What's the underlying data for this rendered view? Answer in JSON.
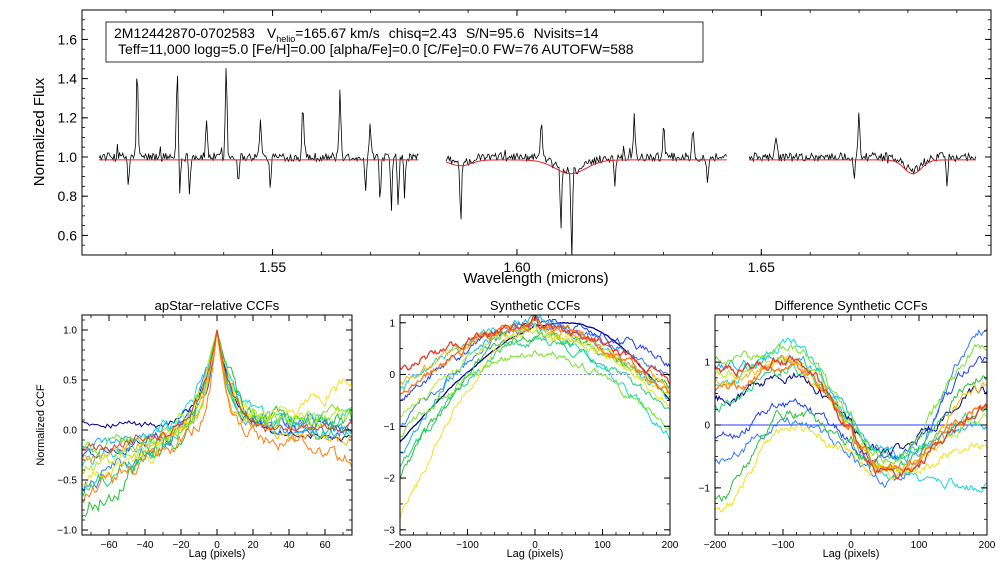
{
  "chart_data": [
    {
      "type": "line",
      "id": "spectrum",
      "header_line1": {
        "star_id": "2M12442870-0702583",
        "vhelio_label": "V",
        "vhelio_sub": "helio",
        "vhelio_value": "=165.67 km/s",
        "chisq": "chisq=2.43",
        "snr": "S/N=95.6",
        "nvisits": "Nvisits=14"
      },
      "header_line2": "Teff=11,000 logg=5.0 [Fe/H]=0.00 [alpha/Fe]=0.0 [C/Fe]=0.0 FW=76 AUTOFW=588",
      "xlabel": "Wavelength (microns)",
      "ylabel": "Normalized Flux",
      "xlim": [
        1.511,
        1.697
      ],
      "ylim": [
        0.5,
        1.75
      ],
      "xticks": [
        1.55,
        1.6,
        1.65
      ],
      "xtick_labels": [
        "1.55",
        "1.60",
        "1.65"
      ],
      "yticks": [
        0.6,
        0.8,
        1.0,
        1.2,
        1.4,
        1.6
      ],
      "ytick_labels": [
        "0.6",
        "0.8",
        "1.0",
        "1.2",
        "1.4",
        "1.6"
      ],
      "chips": [
        [
          1.5145,
          1.58
        ],
        [
          1.5855,
          1.643
        ],
        [
          1.6475,
          1.694
        ]
      ],
      "colors": {
        "observed": "#000000",
        "model": "#e8202a"
      },
      "model_dips": [
        {
          "center": 1.611,
          "depth": 0.07,
          "width": 0.0045
        },
        {
          "center": 1.5885,
          "depth": 0.03,
          "width": 0.003
        },
        {
          "center": 1.681,
          "depth": 0.07,
          "width": 0.0025
        }
      ],
      "emission_lines": [
        {
          "w": 1.5223,
          "f": 1.45
        },
        {
          "w": 1.5305,
          "f": 1.46
        },
        {
          "w": 1.5405,
          "f": 1.48
        },
        {
          "w": 1.5365,
          "f": 1.19
        },
        {
          "w": 1.5475,
          "f": 1.21
        },
        {
          "w": 1.5562,
          "f": 1.28
        },
        {
          "w": 1.5638,
          "f": 1.34
        },
        {
          "w": 1.57,
          "f": 1.16
        },
        {
          "w": 1.605,
          "f": 1.19
        },
        {
          "w": 1.624,
          "f": 1.22
        },
        {
          "w": 1.63,
          "f": 1.18
        },
        {
          "w": 1.636,
          "f": 1.16
        },
        {
          "w": 1.67,
          "f": 1.24
        },
        {
          "w": 1.653,
          "f": 1.12
        }
      ],
      "absorption_lines": [
        {
          "w": 1.5205,
          "f": 0.85
        },
        {
          "w": 1.531,
          "f": 0.8
        },
        {
          "w": 1.533,
          "f": 0.83
        },
        {
          "w": 1.543,
          "f": 0.88
        },
        {
          "w": 1.5495,
          "f": 0.82
        },
        {
          "w": 1.569,
          "f": 0.8
        },
        {
          "w": 1.572,
          "f": 0.73
        },
        {
          "w": 1.5743,
          "f": 0.7
        },
        {
          "w": 1.5757,
          "f": 0.74
        },
        {
          "w": 1.577,
          "f": 0.78
        },
        {
          "w": 1.5885,
          "f": 0.69
        },
        {
          "w": 1.609,
          "f": 0.69
        },
        {
          "w": 1.6112,
          "f": 0.55
        },
        {
          "w": 1.62,
          "f": 0.85
        },
        {
          "w": 1.639,
          "f": 0.85
        },
        {
          "w": 1.669,
          "f": 0.88
        },
        {
          "w": 1.688,
          "f": 0.86
        }
      ]
    },
    {
      "type": "line",
      "id": "apstar_ccf",
      "title": "apStar−relative CCFs",
      "xlabel": "Lag (pixels)",
      "ylabel": "Normalized CCF",
      "xlim": [
        -75,
        75
      ],
      "ylim": [
        -1.05,
        1.15
      ],
      "xticks": [
        -60,
        -40,
        -20,
        0,
        20,
        40,
        60
      ],
      "xtick_labels": [
        "−60",
        "−40",
        "−20",
        "0",
        "20",
        "40",
        "60"
      ],
      "yticks": [
        -1.0,
        -0.5,
        0.0,
        0.5,
        1.0
      ],
      "ytick_labels": [
        "−1.0",
        "−0.5",
        "0.0",
        "0.5",
        "1.0"
      ],
      "series": [
        {
          "color": "#00008b",
          "left": 0.1,
          "right": -0.1,
          "width": 9,
          "amp": 0.06
        },
        {
          "color": "#1f3fff",
          "left": -0.25,
          "right": 0.05,
          "width": 7,
          "amp": 0.1
        },
        {
          "color": "#2f7cff",
          "left": -0.55,
          "right": 0.05,
          "width": 10,
          "amp": 0.12
        },
        {
          "color": "#12b4ee",
          "left": -0.15,
          "right": -0.05,
          "width": 8,
          "amp": 0.1
        },
        {
          "color": "#16d8d8",
          "left": -0.35,
          "right": 0.1,
          "width": 12,
          "amp": 0.12
        },
        {
          "color": "#1fd47a",
          "left": -0.6,
          "right": 0.0,
          "width": 9,
          "amp": 0.14
        },
        {
          "color": "#27c13b",
          "left": -0.85,
          "right": 0.05,
          "width": 11,
          "amp": 0.16
        },
        {
          "color": "#78e22a",
          "left": -0.2,
          "right": 0.2,
          "width": 7,
          "amp": 0.1
        },
        {
          "color": "#b8ec2a",
          "left": -0.4,
          "right": 0.15,
          "width": 10,
          "amp": 0.12
        },
        {
          "color": "#f2e21c",
          "left": -0.55,
          "right": 0.45,
          "width": 8,
          "amp": 0.12
        },
        {
          "color": "#ffb300",
          "left": -0.3,
          "right": -0.1,
          "width": 6,
          "amp": 0.1
        },
        {
          "color": "#ff7b12",
          "left": -0.7,
          "right": -0.3,
          "width": 5,
          "amp": 0.12
        },
        {
          "color": "#e83a2a",
          "left": -0.2,
          "right": 0.0,
          "width": 9,
          "amp": 0.08
        }
      ]
    },
    {
      "type": "line",
      "id": "synthetic_ccf",
      "title": "Synthetic CCFs",
      "xlabel": "Lag (pixels)",
      "ylabel": "",
      "xlim": [
        -200,
        200
      ],
      "ylim": [
        -3.1,
        1.15
      ],
      "xticks": [
        -200,
        -100,
        0,
        100,
        200
      ],
      "xtick_labels": [
        "−200",
        "−100",
        "0",
        "100",
        "200"
      ],
      "yticks": [
        -3,
        -2,
        -1,
        0,
        1
      ],
      "ytick_labels": [
        "−3",
        "−2",
        "−1",
        "0",
        "1"
      ],
      "series": [
        {
          "color": "#00008b",
          "peak_x": 50,
          "peak": 1.0,
          "left": -1.3,
          "right": -0.5
        },
        {
          "color": "#1f3fff",
          "peak_x": 20,
          "peak": 1.0,
          "left": -0.5,
          "right": 0.2
        },
        {
          "color": "#2f7cff",
          "peak_x": 10,
          "peak": 0.9,
          "left": -1.0,
          "right": 0.0
        },
        {
          "color": "#12b4ee",
          "peak_x": -5,
          "peak": 1.0,
          "left": -1.5,
          "right": -0.5
        },
        {
          "color": "#16d8d8",
          "peak_x": -20,
          "peak": 0.9,
          "left": -0.3,
          "right": -1.2
        },
        {
          "color": "#1fd47a",
          "peak_x": 0,
          "peak": 0.6,
          "left": -1.8,
          "right": -0.7
        },
        {
          "color": "#27c13b",
          "peak_x": -10,
          "peak": 0.7,
          "left": -2.0,
          "right": -0.2
        },
        {
          "color": "#78e22a",
          "peak_x": 0,
          "peak": 0.4,
          "left": -1.2,
          "right": -1.0
        },
        {
          "color": "#b8ec2a",
          "peak_x": 5,
          "peak": 0.8,
          "left": -0.8,
          "right": -0.5
        },
        {
          "color": "#f2e21c",
          "peak_x": 0,
          "peak": 0.8,
          "left": -2.8,
          "right": -0.6
        },
        {
          "color": "#ffb300",
          "peak_x": 0,
          "peak": 0.9,
          "left": -0.2,
          "right": -0.3
        },
        {
          "color": "#ff7b12",
          "peak_x": 0,
          "peak": 0.9,
          "left": -0.4,
          "right": -0.4
        },
        {
          "color": "#e83a2a",
          "peak_x": 0,
          "peak": 0.9,
          "left": 0.1,
          "right": -0.1
        }
      ]
    },
    {
      "type": "line",
      "id": "difference_ccf",
      "title": "Difference Synthetic CCFs",
      "xlabel": "Lag (pixels)",
      "ylabel": "",
      "xlim": [
        -200,
        200
      ],
      "ylim": [
        -1.75,
        1.75
      ],
      "xticks": [
        -200,
        -100,
        0,
        100,
        200
      ],
      "xtick_labels": [
        "−200",
        "−100",
        "0",
        "100",
        "200"
      ],
      "yticks": [
        -1,
        0,
        1
      ],
      "ytick_labels": [
        "−1",
        "0",
        "1"
      ],
      "zero_line_color": "#1f3fff",
      "series": [
        {
          "color": "#00008b",
          "left": 0.4,
          "mid": 0.8,
          "trough": -0.4,
          "right": 0.5
        },
        {
          "color": "#1f3fff",
          "left": -0.2,
          "mid": 0.3,
          "trough": -0.6,
          "right": 1.1
        },
        {
          "color": "#2f7cff",
          "left": -0.6,
          "mid": 0.1,
          "trough": -0.9,
          "right": 1.5
        },
        {
          "color": "#12b4ee",
          "left": 0.9,
          "mid": 1.1,
          "trough": -0.5,
          "right": 0.0
        },
        {
          "color": "#16d8d8",
          "left": 0.6,
          "mid": 1.3,
          "trough": -0.8,
          "right": -1.0
        },
        {
          "color": "#1fd47a",
          "left": 0.3,
          "mid": 0.9,
          "trough": -0.5,
          "right": 0.2
        },
        {
          "color": "#27c13b",
          "left": -1.2,
          "mid": 0.2,
          "trough": -0.7,
          "right": 0.8
        },
        {
          "color": "#78e22a",
          "left": 1.0,
          "mid": 1.2,
          "trough": -0.6,
          "right": 1.3
        },
        {
          "color": "#b8ec2a",
          "left": 0.8,
          "mid": 1.0,
          "trough": -0.7,
          "right": 0.1
        },
        {
          "color": "#f2e21c",
          "left": -1.4,
          "mid": 0.0,
          "trough": -0.8,
          "right": -0.3
        },
        {
          "color": "#ffb300",
          "left": 0.7,
          "mid": 1.0,
          "trough": -0.8,
          "right": 0.6
        },
        {
          "color": "#ff7b12",
          "left": 0.5,
          "mid": 0.9,
          "trough": -0.7,
          "right": 0.3
        },
        {
          "color": "#e83a2a",
          "left": 0.9,
          "mid": 1.0,
          "trough": -0.8,
          "right": 0.2
        }
      ]
    }
  ]
}
